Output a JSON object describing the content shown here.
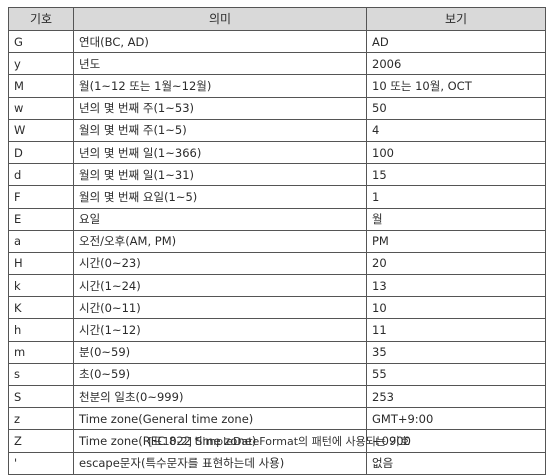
{
  "table": {
    "headers": [
      "기호",
      "의미",
      "보기"
    ],
    "rows": [
      {
        "symbol": "G",
        "meaning": "연대(BC, AD)",
        "example": "AD"
      },
      {
        "symbol": "y",
        "meaning": "년도",
        "example": "2006"
      },
      {
        "symbol": "M",
        "meaning": "월(1~12 또는 1월~12월)",
        "example": "10 또는 10월, OCT"
      },
      {
        "symbol": "w",
        "meaning": "년의 몇 번째 주(1~53)",
        "example": "50"
      },
      {
        "symbol": "W",
        "meaning": "월의 몇 번째 주(1~5)",
        "example": "4"
      },
      {
        "symbol": "D",
        "meaning": "년의 몇 번째 일(1~366)",
        "example": "100"
      },
      {
        "symbol": "d",
        "meaning": "월의 몇 번째 일(1~31)",
        "example": "15"
      },
      {
        "symbol": "F",
        "meaning": "월의 몇 번째 요일(1~5)",
        "example": "1"
      },
      {
        "symbol": "E",
        "meaning": "요일",
        "example": "월"
      },
      {
        "symbol": "a",
        "meaning": "오전/오후(AM, PM)",
        "example": "PM"
      },
      {
        "symbol": "H",
        "meaning": "시간(0~23)",
        "example": "20"
      },
      {
        "symbol": "k",
        "meaning": "시간(1~24)",
        "example": "13"
      },
      {
        "symbol": "K",
        "meaning": "시간(0~11)",
        "example": "10"
      },
      {
        "symbol": "h",
        "meaning": "시간(1~12)",
        "example": "11"
      },
      {
        "symbol": "m",
        "meaning": "분(0~59)",
        "example": "35"
      },
      {
        "symbol": "s",
        "meaning": "초(0~59)",
        "example": "55"
      },
      {
        "symbol": "S",
        "meaning": "천분의 일초(0~999)",
        "example": "253"
      },
      {
        "symbol": "z",
        "meaning": "Time zone(General time zone)",
        "example": "GMT+9:00"
      },
      {
        "symbol": "Z",
        "meaning": "Time zone(RFC 822 time zone)",
        "example": "+0900"
      },
      {
        "symbol": "'",
        "meaning": "escape문자(특수문자를 표현하는데 사용)",
        "example": "없음"
      }
    ]
  },
  "caption": "[표10-2] SimpleDateFormat의 패턴에 사용되는 기호"
}
